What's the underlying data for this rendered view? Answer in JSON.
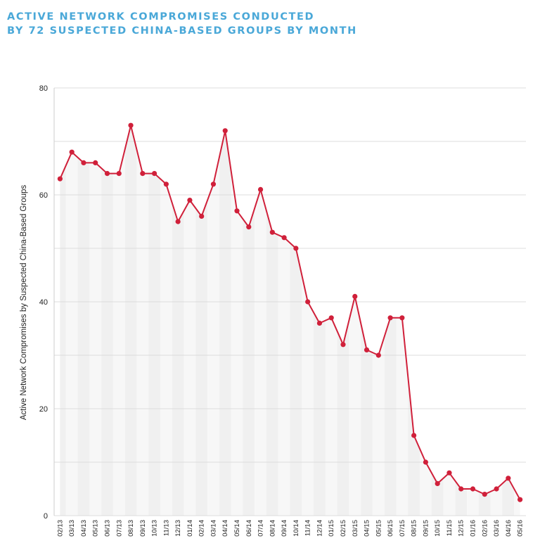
{
  "chart_data": {
    "type": "line",
    "title_lines": [
      "ACTIVE NETWORK COMPROMISES CONDUCTED",
      "BY 72 SUSPECTED CHINA-BASED GROUPS BY MONTH"
    ],
    "ylabel": "Active Network Compromises by Suspected China-Based Groups",
    "xlabel": "",
    "ylim": [
      0,
      80
    ],
    "yticks": [
      0,
      20,
      40,
      60,
      80
    ],
    "grid": true,
    "categories": [
      "02/13",
      "03/13",
      "04/13",
      "05/13",
      "06/13",
      "07/13",
      "08/13",
      "09/13",
      "10/13",
      "11/13",
      "12/13",
      "01/14",
      "02/14",
      "03/14",
      "04/14",
      "05/14",
      "06/14",
      "07/14",
      "08/14",
      "09/14",
      "10/14",
      "11/14",
      "12/14",
      "01/15",
      "02/15",
      "03/15",
      "04/15",
      "05/15",
      "06/15",
      "07/15",
      "08/15",
      "09/15",
      "10/15",
      "11/15",
      "12/15",
      "01/16",
      "02/16",
      "03/16",
      "04/16",
      "05/16"
    ],
    "series": [
      {
        "values": [
          63,
          68,
          66,
          66,
          64,
          64,
          73,
          64,
          64,
          62,
          55,
          59,
          56,
          62,
          72,
          57,
          54,
          61,
          53,
          52,
          50,
          40,
          36,
          37,
          32,
          41,
          31,
          30,
          37,
          37,
          15,
          10,
          6,
          8,
          5,
          5,
          4,
          5,
          7,
          3
        ],
        "color": "#d0203a"
      }
    ],
    "band_colors": [
      "#f0f0f0",
      "#f7f7f7"
    ],
    "gridline_color": "#dddddd"
  }
}
